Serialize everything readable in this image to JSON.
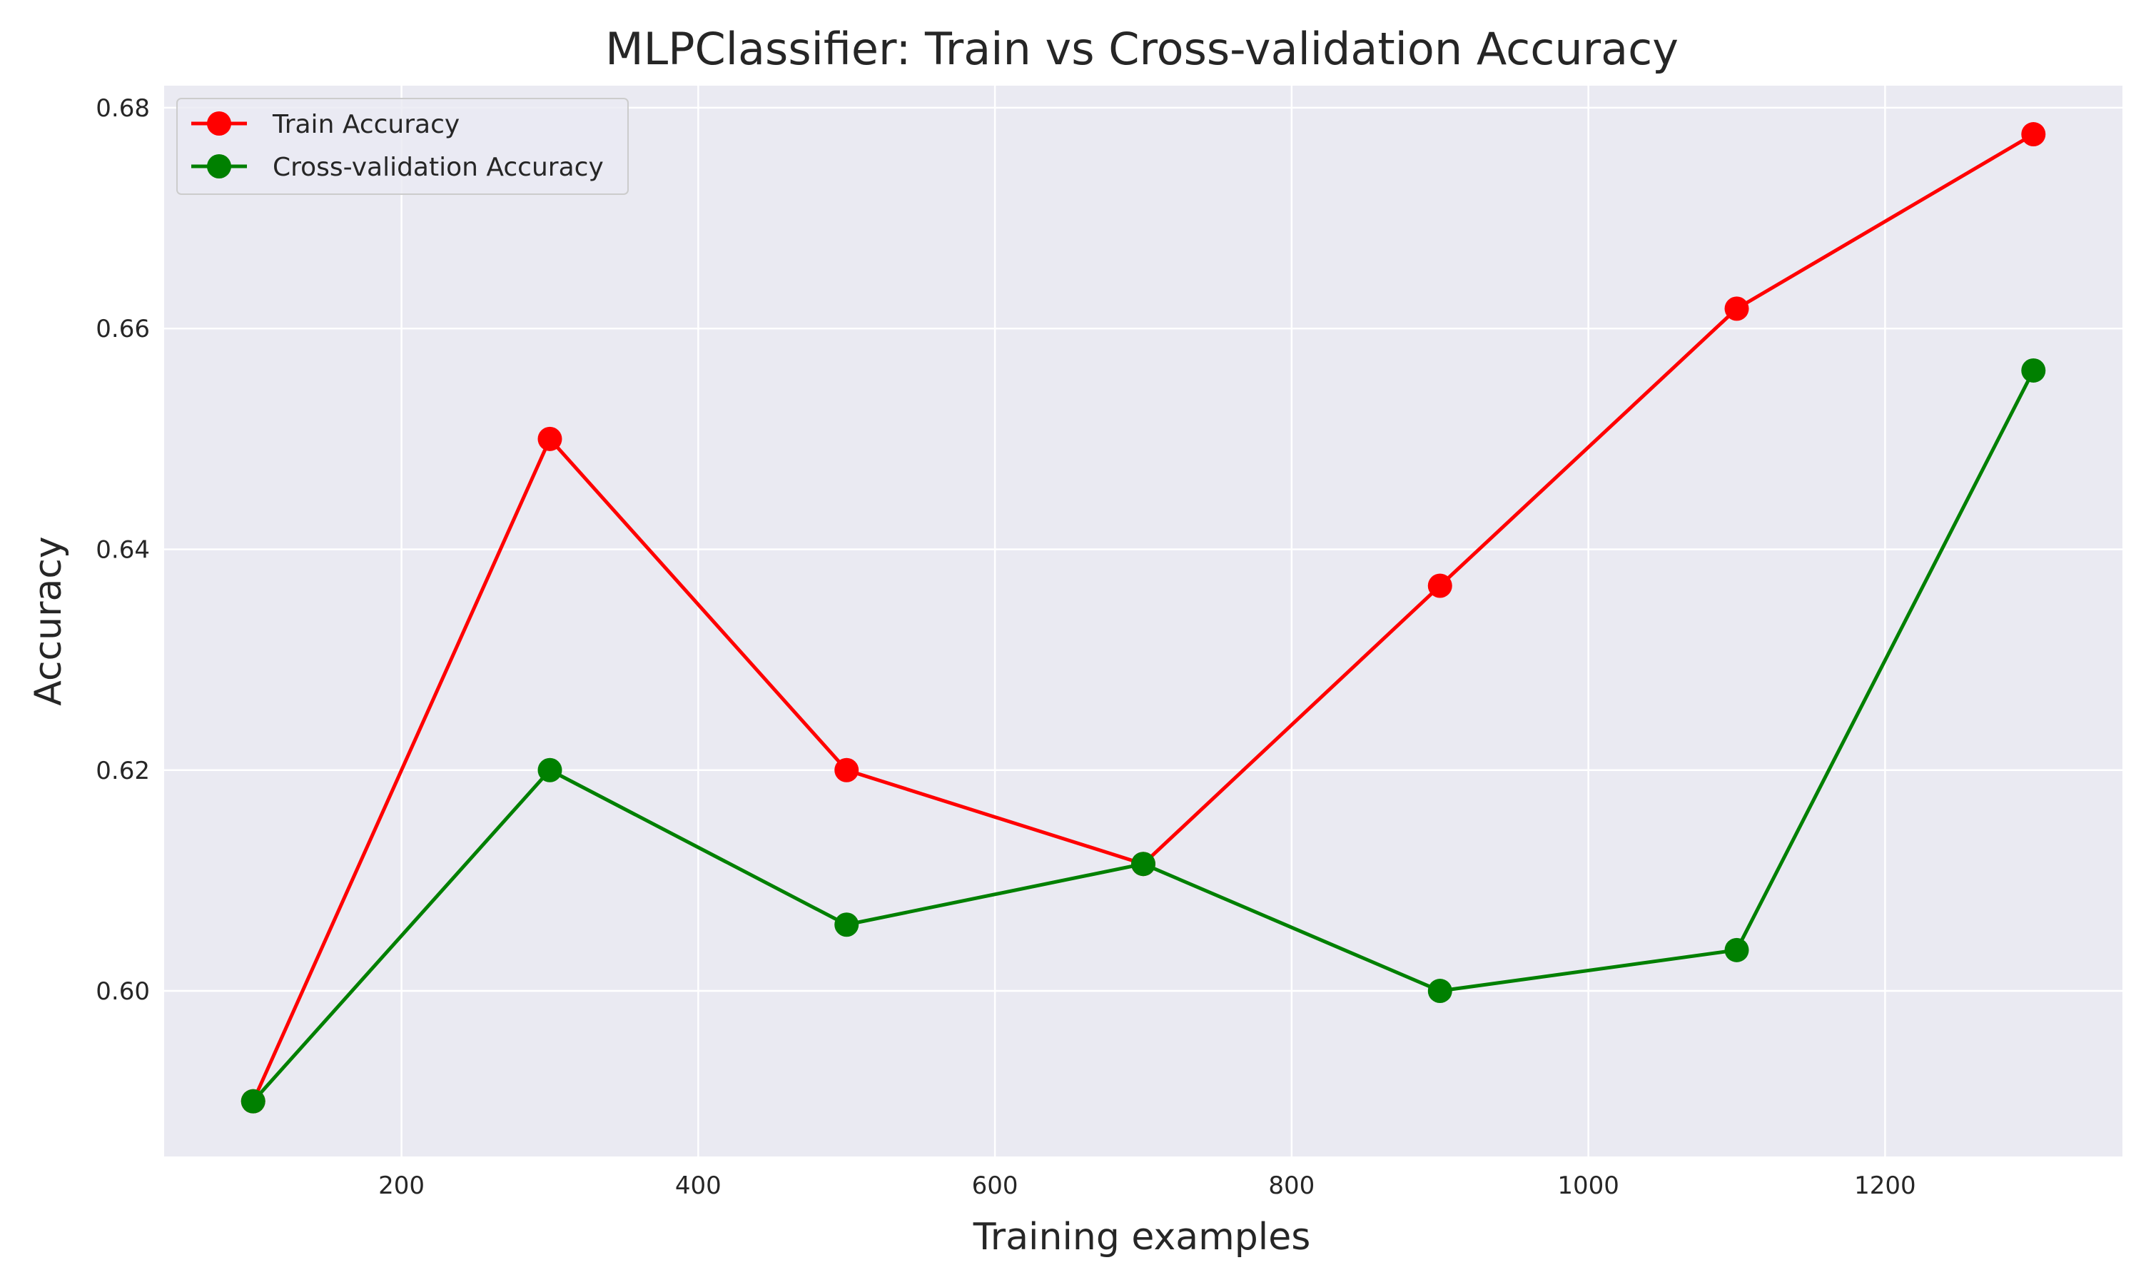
{
  "chart_data": {
    "type": "line",
    "title": "MLPClassifier: Train vs Cross-validation Accuracy",
    "xlabel": "Training examples",
    "ylabel": "Accuracy",
    "x": [
      100,
      300,
      500,
      700,
      900,
      1100,
      1300
    ],
    "xlim": [
      40,
      1360
    ],
    "ylim": [
      0.585,
      0.682
    ],
    "xticks": [
      200,
      400,
      600,
      800,
      1000,
      1200
    ],
    "yticks": [
      0.6,
      0.62,
      0.64,
      0.66,
      0.68
    ],
    "xtick_labels": [
      "200",
      "400",
      "600",
      "800",
      "1000",
      "1200"
    ],
    "ytick_labels": [
      "0.60",
      "0.62",
      "0.64",
      "0.66",
      "0.68"
    ],
    "grid": true,
    "background": "#EAEAF2",
    "legend_position": "top-left",
    "series": [
      {
        "name": "Train Accuracy",
        "color": "#FF0000",
        "marker": "circle",
        "values": [
          0.59,
          0.65,
          0.62,
          0.6115,
          0.6367,
          0.6618,
          0.6776
        ]
      },
      {
        "name": "Cross-validation Accuracy",
        "color": "#008000",
        "marker": "circle",
        "values": [
          0.59,
          0.62,
          0.606,
          0.6115,
          0.6,
          0.6037,
          0.6562
        ]
      }
    ]
  }
}
